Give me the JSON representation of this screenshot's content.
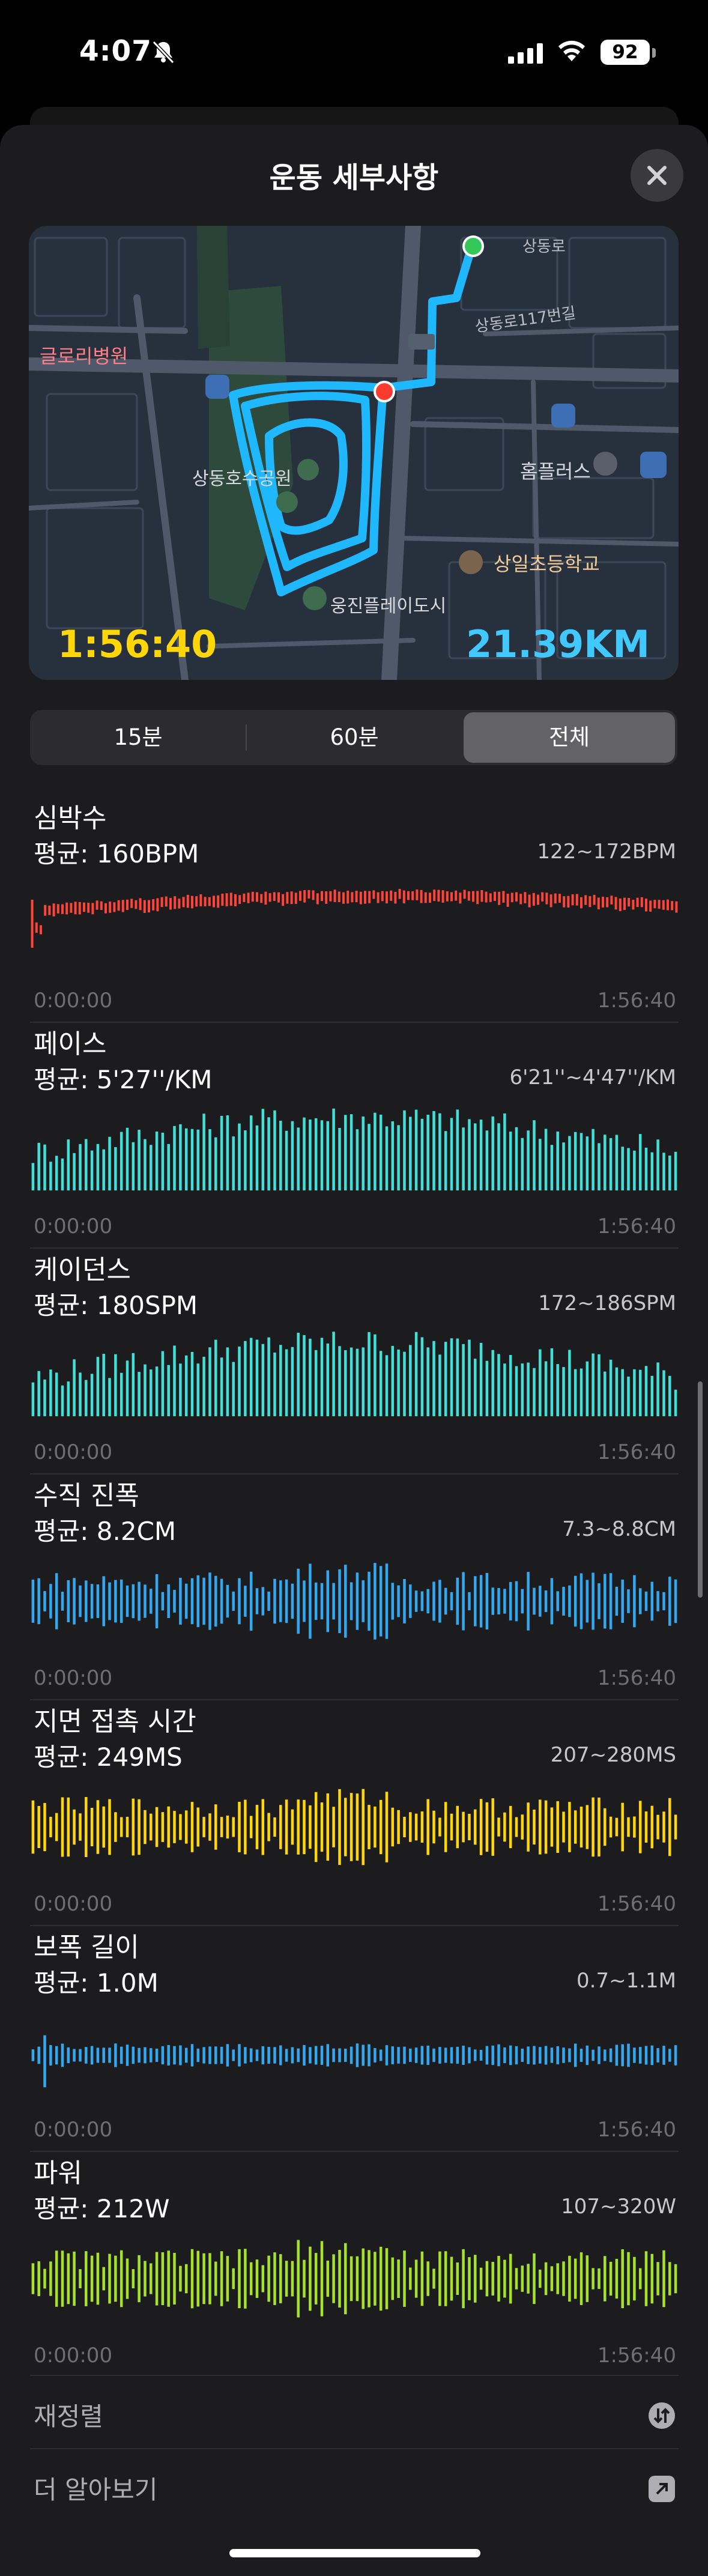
{
  "status_bar": {
    "time": "4:07",
    "battery": "92"
  },
  "sheet": {
    "title": "운동 세부사항"
  },
  "map": {
    "labels": {
      "hospital": "글로리병원",
      "park": "상동호수공원",
      "homeplus": "홈플러스",
      "school": "상일초등학교",
      "woojin": "웅진플레이도시",
      "road1": "상동로117번길",
      "road2": "상동로"
    },
    "elapsed_time": "1:56:40",
    "distance": "21.39KM"
  },
  "segments": {
    "options": [
      "15분",
      "60분",
      "전체"
    ],
    "selected": "전체"
  },
  "metrics": [
    {
      "title": "심박수",
      "avg": "평균: 160BPM",
      "range": "122~172BPM",
      "color": "#ff453a",
      "start": "0:00:00",
      "end": "1:56:40"
    },
    {
      "title": "페이스",
      "avg": "평균: 5'27''/KM",
      "range": "6'21''~4'47''/KM",
      "color": "#40e0d8",
      "start": "0:00:00",
      "end": "1:56:40"
    },
    {
      "title": "케이던스",
      "avg": "평균: 180SPM",
      "range": "172~186SPM",
      "color": "#40e0d8",
      "start": "0:00:00",
      "end": "1:56:40"
    },
    {
      "title": "수직 진폭",
      "avg": "평균: 8.2CM",
      "range": "7.3~8.8CM",
      "color": "#32a8f0",
      "start": "0:00:00",
      "end": "1:56:40"
    },
    {
      "title": "지면 접촉 시간",
      "avg": "평균: 249MS",
      "range": "207~280MS",
      "color": "#ffd60a",
      "start": "0:00:00",
      "end": "1:56:40"
    },
    {
      "title": "보폭 길이",
      "avg": "평균: 1.0M",
      "range": "0.7~1.1M",
      "color": "#32a8f0",
      "start": "0:00:00",
      "end": "1:56:40"
    },
    {
      "title": "파워",
      "avg": "평균: 212W",
      "range": "107~320W",
      "color": "#a6e22a",
      "start": "0:00:00",
      "end": "1:56:40"
    }
  ],
  "links": {
    "reorder": "재정렬",
    "learn_more": "더 알아보기"
  },
  "icons": {
    "status": [
      "bell-slash-icon",
      "signal-icon",
      "wifi-icon",
      "battery-icon"
    ],
    "close": "close-icon",
    "reorder": "reorder-icon",
    "learn_more": "external-link-icon"
  }
}
